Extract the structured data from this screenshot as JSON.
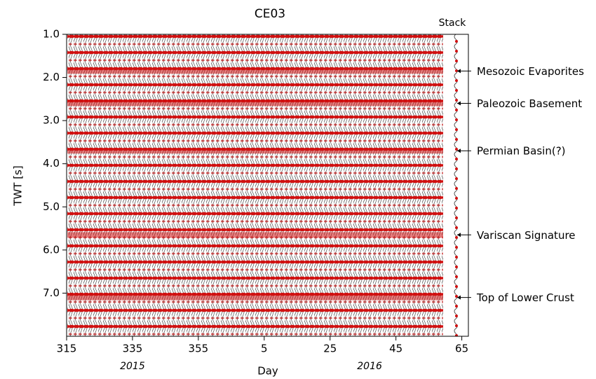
{
  "chart_data": {
    "type": "wiggle",
    "title": "CE03",
    "xlabel": "Day",
    "ylabel": "TWT [s]",
    "xlim": [
      315,
      437
    ],
    "ylim": [
      8.0,
      1.0
    ],
    "xticks": [
      315,
      {
        "value": 335,
        "label": "335"
      },
      {
        "value": 355,
        "label": "355"
      },
      {
        "value": 375,
        "label": "5"
      },
      {
        "value": 395,
        "label": "25"
      },
      {
        "value": 415,
        "label": "45"
      },
      {
        "value": 435,
        "label": "65"
      }
    ],
    "yticks": [
      {
        "value": 1.0,
        "label": "1.0"
      },
      {
        "value": 2.0,
        "label": "2.0"
      },
      {
        "value": 3.0,
        "label": "3.0"
      },
      {
        "value": 4.0,
        "label": "4.0"
      },
      {
        "value": 5.0,
        "label": "5.0"
      },
      {
        "value": 6.0,
        "label": "6.0"
      },
      {
        "value": 7.0,
        "label": "7.0"
      }
    ],
    "years": [
      {
        "text": "2015",
        "x": 335
      },
      {
        "text": "2016",
        "x": 407
      }
    ],
    "stack_label": "Stack",
    "color": "#d01010",
    "annotations": [
      {
        "text": "Mesozoic Evaporites",
        "y": 1.85
      },
      {
        "text": "Paleozoic Basement",
        "y": 2.6
      },
      {
        "text": "Permian Basin(?)",
        "y": 3.7
      },
      {
        "text": "Variscan Signature",
        "y": 5.65
      },
      {
        "text": "Top of Lower Crust",
        "y": 7.1
      }
    ]
  }
}
